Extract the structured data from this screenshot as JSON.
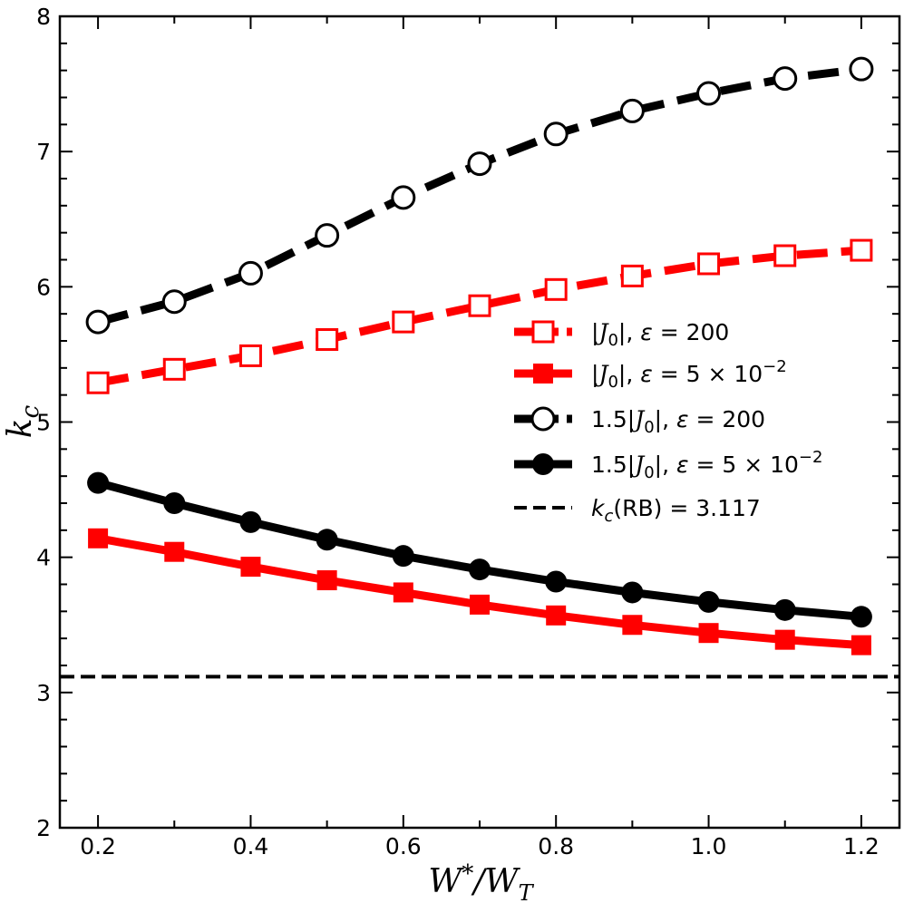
{
  "chart_data": {
    "type": "line",
    "xlabel": "W*/W_T",
    "ylabel": "k_c",
    "xlim": [
      0.15,
      1.25
    ],
    "ylim": [
      2,
      8
    ],
    "xticks": [
      0.2,
      0.4,
      0.6,
      0.8,
      1.0,
      1.2
    ],
    "xtick_labels": [
      "0.2",
      "0.4",
      "0.6",
      "0.8",
      "1.0",
      "1.2"
    ],
    "yticks": [
      2,
      3,
      4,
      5,
      6,
      7,
      8
    ],
    "ytick_labels": [
      "2",
      "3",
      "4",
      "5",
      "6",
      "7",
      "8"
    ],
    "legend_position": "right",
    "x": [
      0.2,
      0.3,
      0.4,
      0.5,
      0.6,
      0.7,
      0.8,
      0.9,
      1.0,
      1.1,
      1.2
    ],
    "series": [
      {
        "name": "|J0|, ε = 200",
        "color": "#ff0000",
        "line": "dashed",
        "marker": "open-square",
        "values": [
          5.29,
          5.39,
          5.49,
          5.61,
          5.74,
          5.86,
          5.98,
          6.08,
          6.17,
          6.23,
          6.27
        ]
      },
      {
        "name": "|J0|, ε = 5 × 10^-2",
        "color": "#ff0000",
        "line": "solid",
        "marker": "filled-square",
        "values": [
          4.14,
          4.04,
          3.93,
          3.83,
          3.74,
          3.65,
          3.57,
          3.5,
          3.44,
          3.39,
          3.35
        ]
      },
      {
        "name": "1.5|J0|, ε = 200",
        "color": "#000000",
        "line": "dashed",
        "marker": "open-circle",
        "values": [
          5.74,
          5.89,
          6.1,
          6.38,
          6.66,
          6.91,
          7.13,
          7.3,
          7.43,
          7.54,
          7.61
        ]
      },
      {
        "name": "1.5|J0|, ε = 5 × 10^-2",
        "color": "#000000",
        "line": "solid",
        "marker": "filled-circle",
        "values": [
          4.55,
          4.4,
          4.26,
          4.13,
          4.01,
          3.91,
          3.82,
          3.74,
          3.67,
          3.61,
          3.56
        ]
      }
    ],
    "reference_line": {
      "name": "k_c(RB) = 3.117",
      "value": 3.117,
      "color": "#000000",
      "line": "dashed"
    }
  }
}
